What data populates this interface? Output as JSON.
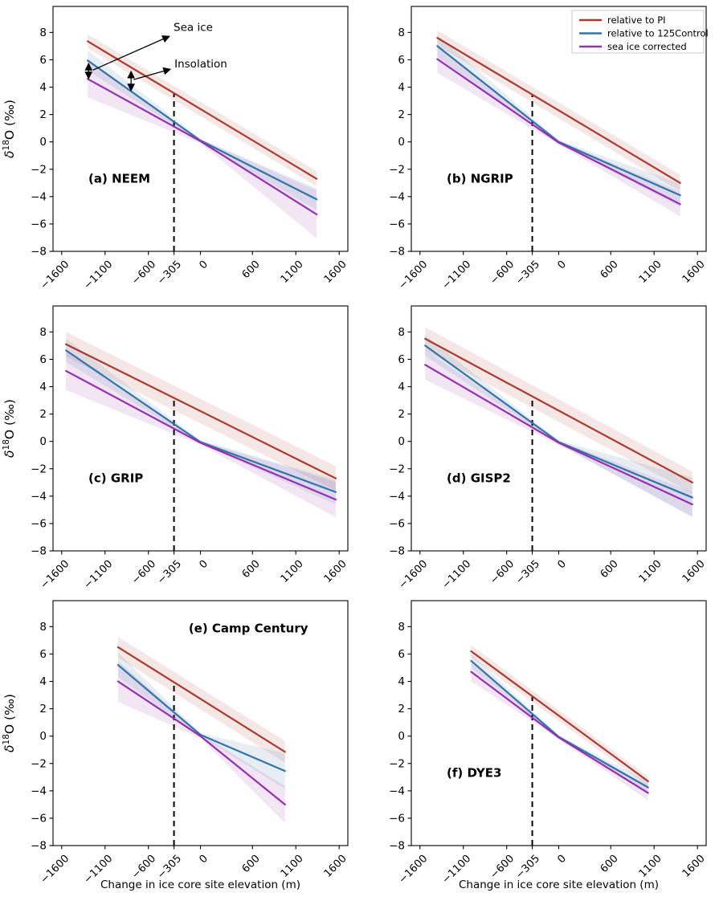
{
  "figure": {
    "xlabel": "Change in ice core site elevation (m)",
    "ylabel": {
      "lead": "δ",
      "sup": "18",
      "rest": "O (‰)"
    },
    "xlim": [
      -1700,
      1700
    ],
    "ylim": [
      -8,
      9.9
    ],
    "grid": false,
    "vline_x": -305,
    "x_ticks": [
      {
        "v": -1600,
        "label": "−1600"
      },
      {
        "v": -1100,
        "label": "−1100"
      },
      {
        "v": -600,
        "label": "−600"
      },
      {
        "v": -305,
        "label": "−305"
      },
      {
        "v": 0,
        "label": "0"
      },
      {
        "v": 600,
        "label": "600"
      },
      {
        "v": 1100,
        "label": "1100"
      },
      {
        "v": 1600,
        "label": "1600"
      }
    ],
    "y_ticks": [
      {
        "v": -8,
        "label": "−8"
      },
      {
        "v": -6,
        "label": "−6"
      },
      {
        "v": -4,
        "label": "−4"
      },
      {
        "v": -2,
        "label": "−2"
      },
      {
        "v": 0,
        "label": "0"
      },
      {
        "v": 2,
        "label": "2"
      },
      {
        "v": 4,
        "label": "4"
      },
      {
        "v": 6,
        "label": "6"
      },
      {
        "v": 8,
        "label": "8"
      }
    ],
    "colors": {
      "relative_to_pi": "#ab3a2e",
      "relative_to_125control": "#3274a8",
      "sea_ice_corrected": "#962fb0",
      "vline": "#000000",
      "spine": "#000000"
    },
    "legend": {
      "position": "top-right-panel-b",
      "entries": [
        {
          "label": "relative to PI",
          "color": "#ab3a2e"
        },
        {
          "label": "relative to 125Control",
          "color": "#3274a8"
        },
        {
          "label": "sea ice corrected",
          "color": "#962fb0"
        }
      ]
    }
  },
  "chart_data": [
    {
      "type": "line",
      "title": "(a) NEEM",
      "title_pos": [
        0.12,
        0.72
      ],
      "legend": false,
      "series": [
        {
          "name": "relative to PI",
          "color": "#ab3a2e",
          "x": [
            -1300,
            1340
          ],
          "y": [
            7.35,
            -2.7
          ],
          "band": [
            0.5,
            0.55
          ]
        },
        {
          "name": "relative to 125Control",
          "color": "#3274a8",
          "x": [
            -1300,
            0,
            1340
          ],
          "y": [
            5.95,
            0.1,
            -4.2
          ],
          "band": [
            0.75,
            0.12,
            0.8
          ]
        },
        {
          "name": "sea ice corrected",
          "color": "#962fb0",
          "x": [
            -1300,
            0,
            1340
          ],
          "y": [
            4.6,
            0.05,
            -5.3
          ],
          "band": [
            1.35,
            0.15,
            1.75
          ]
        }
      ],
      "annotations": {
        "labels": [
          {
            "text": "Sea ice",
            "x": -310,
            "y": 8.1
          },
          {
            "text": "Insolation",
            "x": -300,
            "y": 5.45
          }
        ],
        "arrows": [
          {
            "x1": -1240,
            "y1": 5.25,
            "x2": -365,
            "y2": 7.7
          },
          {
            "x1": -770,
            "y1": 4.55,
            "x2": -355,
            "y2": 5.3
          }
        ],
        "double_arrows": [
          {
            "x": -1290,
            "y1": 5.85,
            "y2": 4.5
          },
          {
            "x": -800,
            "y1": 5.28,
            "y2": 3.62
          }
        ]
      }
    },
    {
      "type": "line",
      "title": "(b) NGRIP",
      "title_pos": [
        0.12,
        0.72
      ],
      "legend": true,
      "series": [
        {
          "name": "relative to PI",
          "color": "#ab3a2e",
          "x": [
            -1400,
            1400
          ],
          "y": [
            7.6,
            -3.0
          ],
          "band": [
            0.55,
            0.6
          ]
        },
        {
          "name": "relative to 125Control",
          "color": "#3274a8",
          "x": [
            -1400,
            0,
            1400
          ],
          "y": [
            7.0,
            0.0,
            -3.9
          ],
          "band": [
            0.8,
            0.12,
            0.85
          ]
        },
        {
          "name": "sea ice corrected",
          "color": "#962fb0",
          "x": [
            -1400,
            0,
            1400
          ],
          "y": [
            6.05,
            -0.05,
            -4.55
          ],
          "band": [
            1.0,
            0.15,
            0.9
          ]
        }
      ],
      "annotations": null
    },
    {
      "type": "line",
      "title": "(c) GRIP",
      "title_pos": [
        0.12,
        0.72
      ],
      "legend": false,
      "series": [
        {
          "name": "relative to PI",
          "color": "#ab3a2e",
          "x": [
            -1550,
            1560
          ],
          "y": [
            7.1,
            -2.7
          ],
          "band": [
            0.9,
            0.9
          ]
        },
        {
          "name": "relative to 125Control",
          "color": "#3274a8",
          "x": [
            -1550,
            0,
            1560
          ],
          "y": [
            6.65,
            -0.05,
            -3.7
          ],
          "band": [
            0.85,
            0.12,
            0.9
          ]
        },
        {
          "name": "sea ice corrected",
          "color": "#962fb0",
          "x": [
            -1550,
            0,
            1560
          ],
          "y": [
            5.15,
            -0.1,
            -4.25
          ],
          "band": [
            1.4,
            0.15,
            1.3
          ]
        }
      ],
      "annotations": null
    },
    {
      "type": "line",
      "title": "(d) GISP2",
      "title_pos": [
        0.12,
        0.72
      ],
      "legend": false,
      "series": [
        {
          "name": "relative to PI",
          "color": "#ab3a2e",
          "x": [
            -1540,
            1540
          ],
          "y": [
            7.5,
            -3.0
          ],
          "band": [
            0.85,
            0.8
          ]
        },
        {
          "name": "relative to 125Control",
          "color": "#3274a8",
          "x": [
            -1540,
            0,
            1540
          ],
          "y": [
            7.0,
            -0.05,
            -4.1
          ],
          "band": [
            0.75,
            0.12,
            1.45
          ]
        },
        {
          "name": "sea ice corrected",
          "color": "#962fb0",
          "x": [
            -1540,
            0,
            1540
          ],
          "y": [
            5.6,
            -0.1,
            -4.6
          ],
          "band": [
            1.1,
            0.15,
            0.9
          ]
        }
      ],
      "annotations": null
    },
    {
      "type": "line",
      "title": "(e) Camp Century",
      "title_pos": [
        0.46,
        0.13
      ],
      "legend": false,
      "series": [
        {
          "name": "relative to PI",
          "color": "#ab3a2e",
          "x": [
            -950,
            975
          ],
          "y": [
            6.5,
            -1.15
          ],
          "band": [
            0.75,
            0.8
          ]
        },
        {
          "name": "relative to 125Control",
          "color": "#3274a8",
          "x": [
            -950,
            0,
            975
          ],
          "y": [
            5.2,
            0.1,
            -2.55
          ],
          "band": [
            0.9,
            0.12,
            1.3
          ]
        },
        {
          "name": "sea ice corrected",
          "color": "#962fb0",
          "x": [
            -950,
            0,
            975
          ],
          "y": [
            4.0,
            0.0,
            -5.0
          ],
          "band": [
            1.5,
            0.15,
            1.35
          ]
        }
      ],
      "annotations": null
    },
    {
      "type": "line",
      "title": "(f) DYE3",
      "title_pos": [
        0.12,
        0.72
      ],
      "legend": false,
      "series": [
        {
          "name": "relative to PI",
          "color": "#ab3a2e",
          "x": [
            -1010,
            1030
          ],
          "y": [
            6.2,
            -3.3
          ],
          "band": [
            0.45,
            0.35
          ]
        },
        {
          "name": "relative to 125Control",
          "color": "#3274a8",
          "x": [
            -1010,
            0,
            1030
          ],
          "y": [
            5.5,
            -0.05,
            -3.75
          ],
          "band": [
            0.5,
            0.1,
            0.45
          ]
        },
        {
          "name": "sea ice corrected",
          "color": "#962fb0",
          "x": [
            -1010,
            0,
            1030
          ],
          "y": [
            4.7,
            -0.1,
            -4.15
          ],
          "band": [
            0.7,
            0.12,
            0.55
          ]
        }
      ],
      "annotations": null
    }
  ]
}
